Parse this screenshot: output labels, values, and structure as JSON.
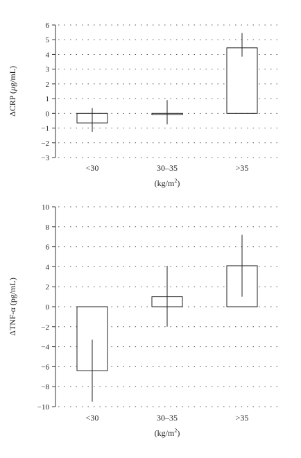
{
  "chart_data": [
    {
      "type": "bar",
      "categories": [
        "<30",
        "30–35",
        ">35"
      ],
      "values": [
        -0.65,
        -0.1,
        4.45
      ],
      "error_low": [
        -1.25,
        -0.75,
        3.85
      ],
      "error_high": [
        0.35,
        0.9,
        5.45
      ],
      "ylabel_prefix": "ΔCRP (",
      "ylabel_italic": "μ",
      "ylabel_suffix": "g/mL)",
      "xlabel_base": "(kg/m",
      "xlabel_sup": "2",
      "xlabel_close": ")",
      "ylim": [
        -3,
        6
      ],
      "yticks": [
        6,
        5,
        4,
        3,
        2,
        1,
        0,
        -1,
        -2,
        -3
      ],
      "ytick_labels": [
        "6",
        "5",
        "4",
        "3",
        "2",
        "1",
        "0",
        "−1",
        "−2",
        "−3"
      ],
      "grid": true
    },
    {
      "type": "bar",
      "categories": [
        "<30",
        "30–35",
        ">35"
      ],
      "values": [
        -6.4,
        1.0,
        4.1
      ],
      "error_low": [
        -9.5,
        -2.0,
        1.0
      ],
      "error_high": [
        -3.3,
        4.1,
        7.2
      ],
      "ylabel_prefix": "ΔTNF-α (pg/mL)",
      "ylabel_italic": "",
      "ylabel_suffix": "",
      "xlabel_base": "(kg/m",
      "xlabel_sup": "2",
      "xlabel_close": ")",
      "ylim": [
        -10,
        10
      ],
      "yticks": [
        10,
        8,
        6,
        4,
        2,
        0,
        -2,
        -4,
        -6,
        -8,
        -10
      ],
      "ytick_labels": [
        "10",
        "8",
        "6",
        "4",
        "2",
        "0",
        "−2",
        "−4",
        "−6",
        "−8",
        "−10"
      ],
      "grid": true
    }
  ]
}
